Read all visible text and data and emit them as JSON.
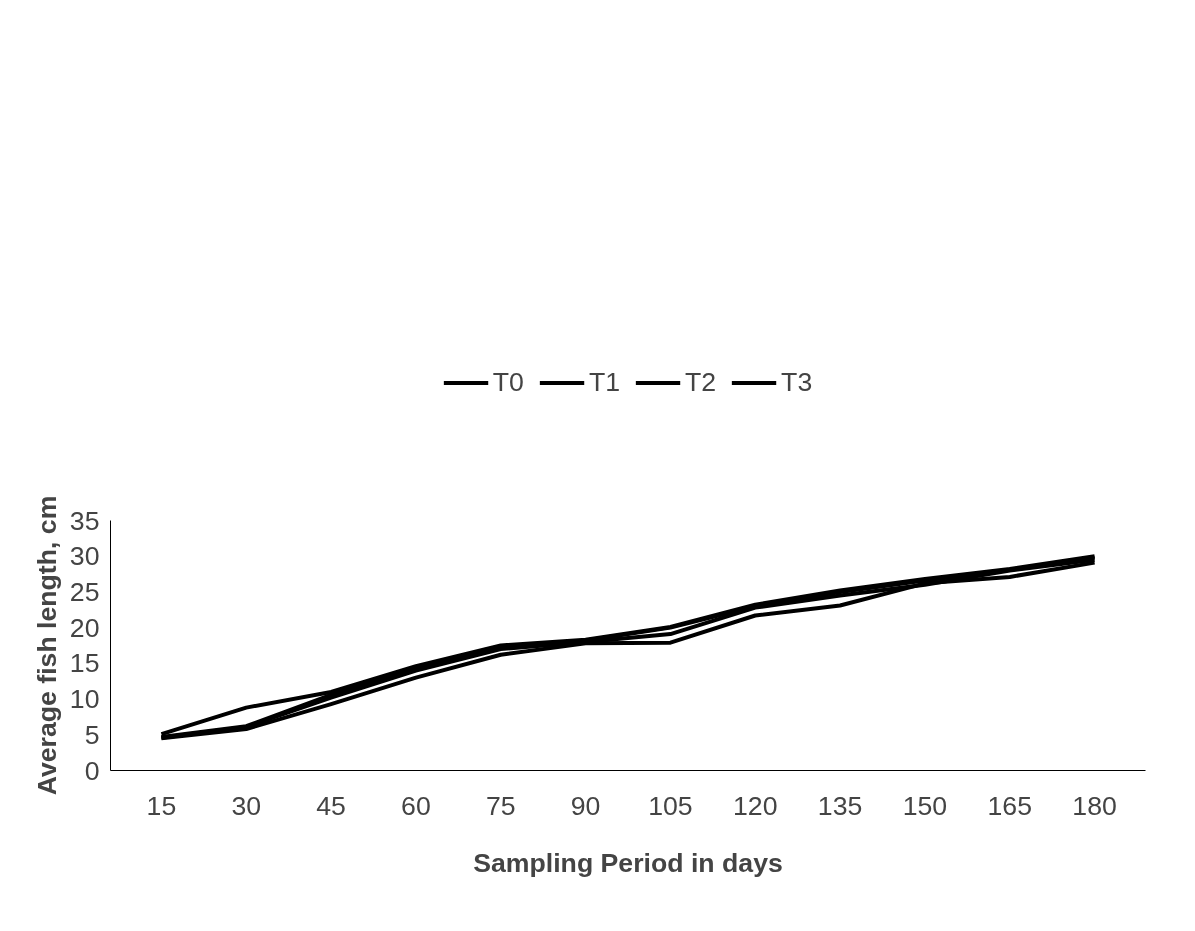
{
  "chart_data": {
    "type": "line",
    "xlabel": "Sampling Period in days",
    "ylabel": "Average fish length, cm",
    "categories": [
      "15",
      "30",
      "45",
      "60",
      "75",
      "90",
      "105",
      "120",
      "135",
      "150",
      "165",
      "180"
    ],
    "ylim": [
      0,
      35
    ],
    "yticks": [
      0,
      5,
      10,
      15,
      20,
      25,
      30,
      35
    ],
    "grid": false,
    "legend": "top",
    "marker": "none",
    "line_style": "solid",
    "series": [
      {
        "name": "T0",
        "color": "#000000",
        "values": [
          5.1,
          8.8,
          11.0,
          14.6,
          17.5,
          18.3,
          20.1,
          23.2,
          25.2,
          26.8,
          28.2,
          30.0
        ]
      },
      {
        "name": "T1",
        "color": "#000000",
        "values": [
          4.5,
          5.8,
          9.3,
          13.0,
          16.2,
          17.8,
          17.9,
          21.7,
          23.1,
          26.2,
          27.1,
          29.1
        ]
      },
      {
        "name": "T2",
        "color": "#000000",
        "values": [
          4.6,
          6.1,
          10.2,
          14.0,
          17.0,
          18.0,
          19.1,
          22.8,
          24.5,
          26.0,
          28.0,
          29.5
        ]
      },
      {
        "name": "T3",
        "color": "#000000",
        "values": [
          4.7,
          6.2,
          10.6,
          14.3,
          17.3,
          18.2,
          20.0,
          23.0,
          25.0,
          26.6,
          28.1,
          29.8
        ]
      }
    ]
  }
}
